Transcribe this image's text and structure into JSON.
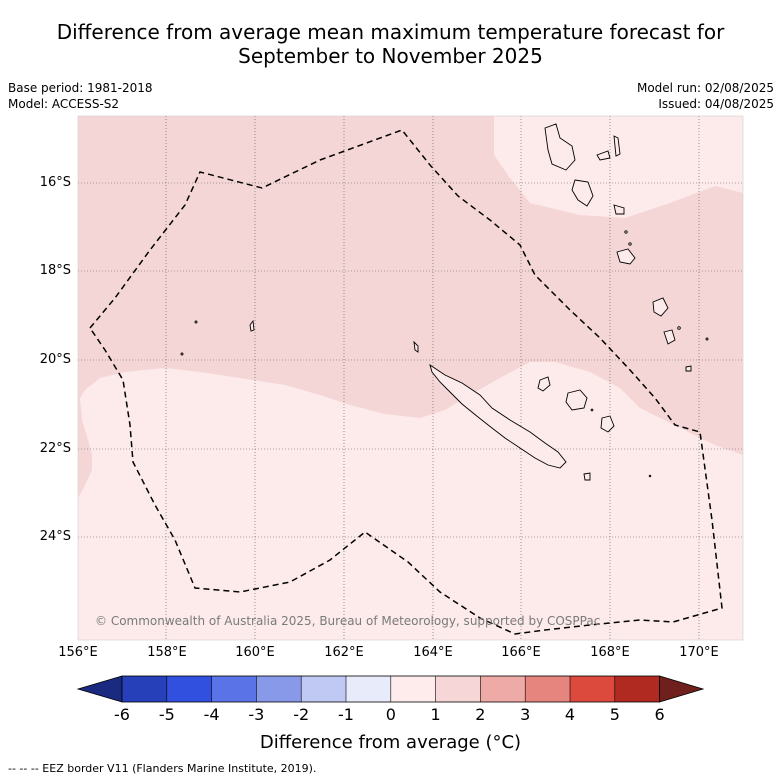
{
  "title_line1": "Difference from average mean maximum temperature forecast for",
  "title_line2": "September to November 2025",
  "base_period": "Base period: 1981-2018",
  "model": "Model: ACCESS-S2",
  "model_run": "Model run: 02/08/2025",
  "issued": "Issued: 04/08/2025",
  "copyright": "© Commonwealth of Australia 2025, Bureau of Meteorology, supported by COSPPac",
  "latitudes": [
    "16°S",
    "18°S",
    "20°S",
    "22°S",
    "24°S"
  ],
  "longitudes": [
    "156°E",
    "158°E",
    "160°E",
    "162°E",
    "164°E",
    "166°E",
    "168°E",
    "170°E"
  ],
  "colorbar": {
    "ticks": [
      "-6",
      "-5",
      "-4",
      "-3",
      "-2",
      "-1",
      "0",
      "1",
      "2",
      "3",
      "4",
      "5",
      "6"
    ],
    "colors": [
      "#1a2a80",
      "#2540b8",
      "#3150e0",
      "#5a73e6",
      "#8899ea",
      "#c0c8f4",
      "#e8ecfa",
      "#fdeceb",
      "#f6d6d6",
      "#eeaaa6",
      "#e6857d",
      "#dc4a3e",
      "#b02a22",
      "#70201c"
    ],
    "label": "Difference from average (°C)"
  },
  "footnote": "-- -- -- EEZ border V11 (Flanders Marine Institute, 2019).",
  "map_colors": {
    "band_0_1": "#fcebea",
    "band_1_2": "#f5d6d6",
    "coast": "#000000"
  }
}
